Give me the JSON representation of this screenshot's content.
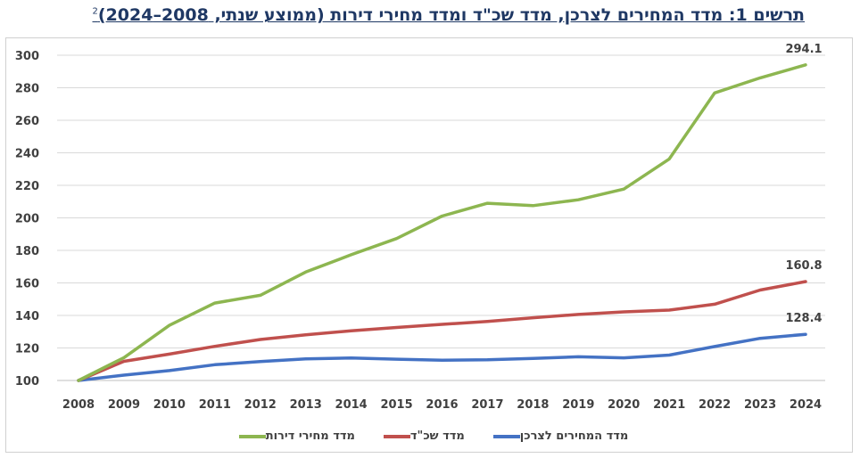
{
  "title": "תרשים 1: מדד המחירים לצרכן, מדד שכ\"ד ומדד מחירי דירות (ממוצע שנתי, 2008–2024)",
  "title_sup": "2",
  "chart_data": {
    "type": "line",
    "title": "תרשים 1: מדד המחירים לצרכן, מדד שכ\"ד ומדד מחירי דירות (ממוצע שנתי, 2008–2024)",
    "xlabel": "",
    "ylabel": "",
    "x": [
      "2008",
      "2009",
      "2010",
      "2011",
      "2012",
      "2013",
      "2014",
      "2015",
      "2016",
      "2017",
      "2018",
      "2019",
      "2020",
      "2021",
      "2022",
      "2023",
      "2024"
    ],
    "ylim": [
      100,
      300
    ],
    "yticks": [
      100,
      120,
      140,
      160,
      180,
      200,
      220,
      240,
      260,
      280,
      300
    ],
    "grid": true,
    "legend_position": "bottom",
    "series": [
      {
        "name": "מדד המחירים לצרכן",
        "color": "#4472c4",
        "values": [
          100,
          103.3,
          106.1,
          109.7,
          111.6,
          113.3,
          113.8,
          113.1,
          112.5,
          112.7,
          113.6,
          114.6,
          113.9,
          115.6,
          120.9,
          125.9,
          128.4
        ],
        "end_label": "128.4"
      },
      {
        "name": "מדד שכ\"ד",
        "color": "#c0504d",
        "values": [
          100,
          111.8,
          116.2,
          121.0,
          125.2,
          128.1,
          130.5,
          132.6,
          134.5,
          136.3,
          138.6,
          140.6,
          142.2,
          143.3,
          146.9,
          155.6,
          160.8
        ],
        "end_label": "160.8"
      },
      {
        "name": "מדד מחירי דירות",
        "color": "#8db650",
        "values": [
          100,
          114.0,
          133.9,
          147.6,
          152.4,
          166.7,
          177.3,
          187.3,
          201.1,
          209.0,
          207.5,
          211.1,
          217.7,
          236.2,
          276.8,
          286.1,
          294.1
        ],
        "end_label": "294.1"
      }
    ]
  }
}
